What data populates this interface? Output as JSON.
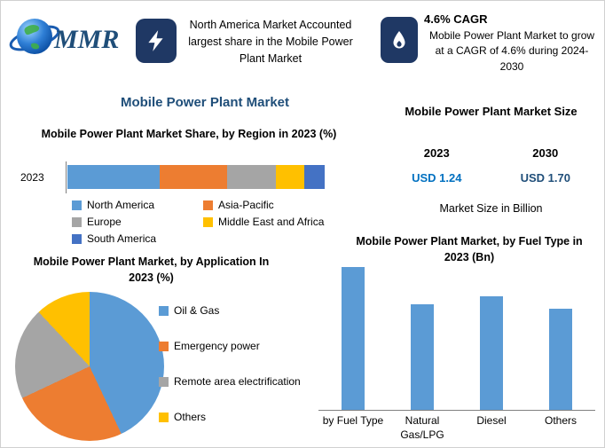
{
  "page_title": "Mobile Power Plant Market",
  "header": {
    "logo_text": "MMR",
    "share_callout": {
      "icon": "lightning-icon",
      "text": "North America Market Accounted largest share in the Mobile Power Plant Market"
    },
    "cagr_callout": {
      "icon": "flame-icon",
      "heading": "4.6% CAGR",
      "text": "Mobile Power Plant Market to grow at a CAGR of 4.6% during 2024-2030"
    }
  },
  "main_title": "Mobile Power Plant Market",
  "market_size": {
    "title": "Mobile Power Plant Market Size",
    "years": [
      "2023",
      "2030"
    ],
    "values": [
      "USD 1.24",
      "USD 1.70"
    ],
    "subtitle": "Market Size in Billion"
  },
  "colors": {
    "navy_icon_box": "#1F3864",
    "title_blue": "#1F4E79",
    "usd_2023_blue": "#0070C0",
    "usd_2030_blue": "#1F4E79",
    "series_blue": "#5B9BD5",
    "series_orange": "#ED7D31",
    "series_gray": "#A5A5A5",
    "series_yellow": "#FFC000",
    "series_dark_blue": "#4472C4"
  },
  "chart_data": [
    {
      "type": "bar",
      "variant": "stacked-horizontal",
      "title": "Mobile Power Plant Market Share, by Region in 2023 (%)",
      "categories": [
        "2023"
      ],
      "series": [
        {
          "name": "North America",
          "values": [
            36
          ],
          "color": "#5B9BD5"
        },
        {
          "name": "Asia-Pacific",
          "values": [
            26
          ],
          "color": "#ED7D31"
        },
        {
          "name": "Europe",
          "values": [
            19
          ],
          "color": "#A5A5A5"
        },
        {
          "name": "Middle East and Africa",
          "values": [
            11
          ],
          "color": "#FFC000"
        },
        {
          "name": "South America",
          "values": [
            8
          ],
          "color": "#4472C4"
        }
      ],
      "xlim": [
        0,
        100
      ],
      "grid": false,
      "legend_position": "bottom"
    },
    {
      "type": "pie",
      "title": "Mobile Power Plant Market, by Application In 2023 (%)",
      "labels": [
        "Oil & Gas",
        "Emergency power",
        "Remote area electrification",
        "Others"
      ],
      "values": [
        43,
        25,
        20,
        12
      ],
      "colors": [
        "#5B9BD5",
        "#ED7D31",
        "#A5A5A5",
        "#FFC000"
      ],
      "legend_position": "right"
    },
    {
      "type": "bar",
      "title": "Mobile Power Plant Market, by Fuel Type in 2023 (Bn)",
      "categories": [
        "by Fuel Type",
        "Natural Gas/LPG",
        "Diesel",
        "Others"
      ],
      "values": [
        1.7,
        1.25,
        1.35,
        1.2
      ],
      "color": "#5B9BD5",
      "xlabel": "",
      "ylabel": "",
      "ylim": [
        0,
        1.8
      ],
      "grid": false
    }
  ]
}
